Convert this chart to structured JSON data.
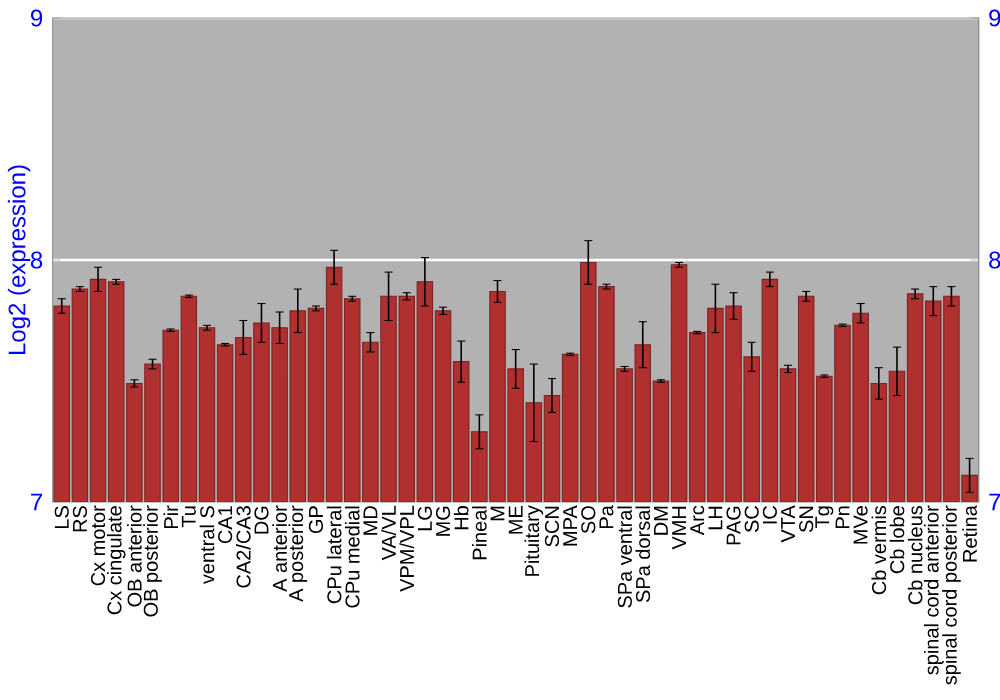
{
  "chart_data": {
    "type": "bar",
    "ylabel": "Log2 (expression)",
    "categories": [
      "LS",
      "RS",
      "Cx motor",
      "Cx cingulate",
      "OB anterior",
      "OB posterior",
      "Pir",
      "Tu",
      "ventral S",
      "CA1",
      "CA2/CA3",
      "DG",
      "A anterior",
      "A posterior",
      "GP",
      "CPu lateral",
      "CPu medial",
      "MD",
      "VA/VL",
      "VPM/VPL",
      "LG",
      "MG",
      "Hb",
      "Pineal",
      "M",
      "ME",
      "Pituitary",
      "SCN",
      "MPA",
      "SO",
      "Pa",
      "SPa ventral",
      "SPa dorsal",
      "DM",
      "VMH",
      "Arc",
      "LH",
      "PAG",
      "SC",
      "IC",
      "VTA",
      "SN",
      "Tg",
      "Pn",
      "MVe",
      "Cb vermis",
      "Cb lobe",
      "Cb nucleus",
      "spinal cord anterior",
      "spinal cord posterior",
      "Retina"
    ],
    "values": [
      7.81,
      7.88,
      7.92,
      7.91,
      7.49,
      7.57,
      7.71,
      7.85,
      7.72,
      7.65,
      7.68,
      7.74,
      7.72,
      7.79,
      7.8,
      7.97,
      7.84,
      7.66,
      7.85,
      7.85,
      7.91,
      7.79,
      7.58,
      7.29,
      7.87,
      7.55,
      7.41,
      7.44,
      7.61,
      7.99,
      7.89,
      7.55,
      7.65,
      7.5,
      7.98,
      7.7,
      7.8,
      7.81,
      7.6,
      7.92,
      7.55,
      7.85,
      7.52,
      7.73,
      7.78,
      7.49,
      7.54,
      7.86,
      7.83,
      7.85,
      7.11
    ],
    "errors": [
      0.03,
      0.01,
      0.05,
      0.01,
      0.015,
      0.02,
      0.005,
      0.005,
      0.01,
      0.005,
      0.07,
      0.08,
      0.065,
      0.09,
      0.01,
      0.07,
      0.01,
      0.04,
      0.1,
      0.015,
      0.1,
      0.015,
      0.085,
      0.07,
      0.045,
      0.08,
      0.16,
      0.07,
      0.005,
      0.09,
      0.01,
      0.01,
      0.095,
      0.005,
      0.01,
      0.005,
      0.1,
      0.055,
      0.06,
      0.03,
      0.015,
      0.02,
      0.005,
      0.005,
      0.04,
      0.065,
      0.1,
      0.02,
      0.06,
      0.04,
      0.07
    ],
    "color": "#b03030",
    "ylim": [
      7,
      9
    ],
    "yticks": [
      7,
      8,
      9
    ],
    "y2lim": [
      7,
      9
    ],
    "y2ticks": [
      7,
      8,
      9
    ],
    "grid": "y"
  }
}
